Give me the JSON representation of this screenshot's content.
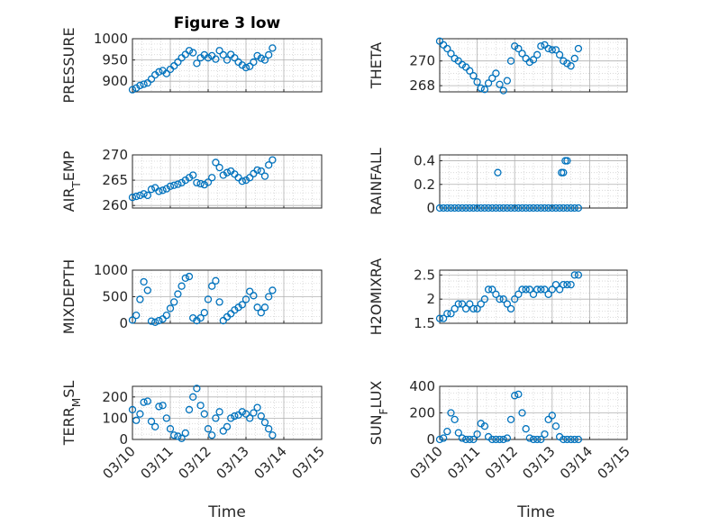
{
  "figure": {
    "title": "Figure 3 low",
    "xlabel": "Time"
  },
  "chart_data": [
    {
      "type": "scatter",
      "ylabel": "PRESSURE",
      "ylabel_parts": [
        "PRESSURE"
      ],
      "ylim": [
        875,
        1000
      ],
      "yticks": [
        900,
        950,
        1000
      ],
      "xticks": [
        "03/10",
        "03/11",
        "03/12",
        "03/13",
        "03/14",
        "03/15"
      ],
      "show_xtick_labels": false,
      "x": [
        0,
        0.1,
        0.2,
        0.3,
        0.4,
        0.5,
        0.6,
        0.7,
        0.8,
        0.9,
        1.0,
        1.1,
        1.2,
        1.3,
        1.4,
        1.5,
        1.6,
        1.7,
        1.8,
        1.9,
        2.0,
        2.1,
        2.2,
        2.3,
        2.4,
        2.5,
        2.6,
        2.7,
        2.8,
        2.9,
        3.0,
        3.1,
        3.2,
        3.3,
        3.4,
        3.5,
        3.6,
        3.7
      ],
      "y": [
        880,
        884,
        890,
        893,
        896,
        905,
        915,
        922,
        925,
        918,
        928,
        936,
        945,
        955,
        963,
        972,
        967,
        942,
        955,
        962,
        955,
        960,
        952,
        972,
        962,
        950,
        963,
        955,
        945,
        938,
        932,
        935,
        945,
        960,
        954,
        950,
        962,
        978
      ]
    },
    {
      "type": "scatter",
      "ylabel": "THETA",
      "ylabel_parts": [
        "THETA"
      ],
      "ylim": [
        267.5,
        271.8
      ],
      "yticks": [
        268,
        270
      ],
      "xticks": [
        "03/10",
        "03/11",
        "03/12",
        "03/13",
        "03/14",
        "03/15"
      ],
      "show_xtick_labels": false,
      "x": [
        0,
        0.1,
        0.2,
        0.3,
        0.4,
        0.5,
        0.6,
        0.7,
        0.8,
        0.9,
        1.0,
        1.1,
        1.2,
        1.3,
        1.4,
        1.5,
        1.6,
        1.7,
        1.8,
        1.9,
        2.0,
        2.1,
        2.2,
        2.3,
        2.4,
        2.5,
        2.6,
        2.7,
        2.8,
        2.9,
        3.0,
        3.1,
        3.2,
        3.3,
        3.4,
        3.5,
        3.6,
        3.7
      ],
      "y": [
        271.6,
        271.3,
        271.0,
        270.6,
        270.2,
        270.0,
        269.7,
        269.5,
        269.2,
        268.8,
        268.3,
        267.8,
        267.7,
        268.2,
        268.6,
        269.0,
        268.1,
        267.6,
        268.4,
        270.0,
        271.2,
        271.0,
        270.6,
        270.2,
        269.9,
        270.1,
        270.5,
        271.2,
        271.3,
        271.0,
        270.9,
        270.9,
        270.5,
        270.0,
        269.8,
        269.6,
        270.2,
        271.0
      ]
    },
    {
      "type": "scatter",
      "ylabel": "AIR_TEMP",
      "ylabel_parts": [
        "AIR",
        "T",
        "EMP"
      ],
      "ylim": [
        259.5,
        270
      ],
      "yticks": [
        260,
        265,
        270
      ],
      "xticks": [
        "03/10",
        "03/11",
        "03/12",
        "03/13",
        "03/14",
        "03/15"
      ],
      "show_xtick_labels": false,
      "x": [
        0,
        0.1,
        0.2,
        0.3,
        0.4,
        0.5,
        0.6,
        0.7,
        0.8,
        0.9,
        1.0,
        1.1,
        1.2,
        1.3,
        1.4,
        1.5,
        1.6,
        1.7,
        1.8,
        1.9,
        2.0,
        2.1,
        2.2,
        2.3,
        2.4,
        2.5,
        2.6,
        2.7,
        2.8,
        2.9,
        3.0,
        3.1,
        3.2,
        3.3,
        3.4,
        3.5,
        3.6,
        3.7
      ],
      "y": [
        261.6,
        261.8,
        262.0,
        262.3,
        262.0,
        263.2,
        263.5,
        262.8,
        263.0,
        263.3,
        263.8,
        264.0,
        264.2,
        264.5,
        265.0,
        265.5,
        266.0,
        264.5,
        264.3,
        264.1,
        264.6,
        265.5,
        268.5,
        267.5,
        266.0,
        266.5,
        266.8,
        266.2,
        265.5,
        264.8,
        265.0,
        265.5,
        266.3,
        267.0,
        266.8,
        265.8,
        268.0,
        269.0
      ]
    },
    {
      "type": "scatter",
      "ylabel": "RAINFALL",
      "ylabel_parts": [
        "RAINFALL"
      ],
      "ylim": [
        0,
        0.45
      ],
      "yticks": [
        0,
        0.2,
        0.4
      ],
      "xticks": [
        "03/10",
        "03/11",
        "03/12",
        "03/13",
        "03/14",
        "03/15"
      ],
      "show_xtick_labels": false,
      "x": [
        0,
        0.1,
        0.2,
        0.3,
        0.4,
        0.5,
        0.6,
        0.7,
        0.8,
        0.9,
        1.0,
        1.1,
        1.2,
        1.3,
        1.4,
        1.5,
        1.6,
        1.7,
        1.8,
        1.9,
        2.0,
        2.1,
        2.2,
        2.3,
        2.4,
        2.5,
        2.6,
        2.7,
        2.8,
        2.9,
        3.0,
        3.1,
        3.2,
        3.3,
        3.4,
        3.5,
        3.6,
        3.7,
        1.55,
        3.25,
        3.3,
        3.35,
        3.4
      ],
      "y": [
        0,
        0,
        0,
        0,
        0,
        0,
        0,
        0,
        0,
        0,
        0,
        0,
        0,
        0,
        0,
        0,
        0,
        0,
        0,
        0,
        0,
        0,
        0,
        0,
        0,
        0,
        0,
        0,
        0,
        0,
        0,
        0,
        0,
        0,
        0,
        0,
        0,
        0,
        0.3,
        0.3,
        0.3,
        0.4,
        0.4
      ]
    },
    {
      "type": "scatter",
      "ylabel": "MIXDEPTH",
      "ylabel_parts": [
        "MIXDEPTH"
      ],
      "ylim": [
        0,
        1000
      ],
      "yticks": [
        0,
        500,
        1000
      ],
      "xticks": [
        "03/10",
        "03/11",
        "03/12",
        "03/13",
        "03/14",
        "03/15"
      ],
      "show_xtick_labels": false,
      "x": [
        0,
        0.1,
        0.2,
        0.3,
        0.4,
        0.5,
        0.6,
        0.7,
        0.8,
        0.9,
        1.0,
        1.1,
        1.2,
        1.3,
        1.4,
        1.5,
        1.6,
        1.7,
        1.8,
        1.9,
        2.0,
        2.1,
        2.2,
        2.3,
        2.4,
        2.5,
        2.6,
        2.7,
        2.8,
        2.9,
        3.0,
        3.1,
        3.2,
        3.3,
        3.4,
        3.5,
        3.6,
        3.7
      ],
      "y": [
        60,
        150,
        450,
        780,
        620,
        40,
        20,
        50,
        80,
        150,
        280,
        400,
        550,
        700,
        850,
        880,
        100,
        50,
        100,
        200,
        450,
        700,
        800,
        400,
        50,
        120,
        180,
        250,
        300,
        350,
        450,
        600,
        520,
        300,
        200,
        300,
        500,
        620
      ]
    },
    {
      "type": "scatter",
      "ylabel": "H2OMIXRA",
      "ylabel_parts": [
        "H2OMIXRA"
      ],
      "ylim": [
        1.5,
        2.6
      ],
      "yticks": [
        1.5,
        2,
        2.5
      ],
      "xticks": [
        "03/10",
        "03/11",
        "03/12",
        "03/13",
        "03/14",
        "03/15"
      ],
      "show_xtick_labels": false,
      "x": [
        0,
        0.1,
        0.2,
        0.3,
        0.4,
        0.5,
        0.6,
        0.7,
        0.8,
        0.9,
        1.0,
        1.1,
        1.2,
        1.3,
        1.4,
        1.5,
        1.6,
        1.7,
        1.8,
        1.9,
        2.0,
        2.1,
        2.2,
        2.3,
        2.4,
        2.5,
        2.6,
        2.7,
        2.8,
        2.9,
        3.0,
        3.1,
        3.2,
        3.3,
        3.4,
        3.5,
        3.6,
        3.7
      ],
      "y": [
        1.6,
        1.6,
        1.7,
        1.7,
        1.8,
        1.9,
        1.9,
        1.8,
        1.9,
        1.8,
        1.8,
        1.9,
        2.0,
        2.2,
        2.2,
        2.1,
        2.0,
        2.0,
        1.9,
        1.8,
        2.0,
        2.1,
        2.2,
        2.2,
        2.2,
        2.1,
        2.2,
        2.2,
        2.2,
        2.1,
        2.2,
        2.3,
        2.2,
        2.3,
        2.3,
        2.3,
        2.5,
        2.5
      ]
    },
    {
      "type": "scatter",
      "ylabel": "TERR_MSL",
      "ylabel_parts": [
        "TERR",
        "M",
        "SL"
      ],
      "ylim": [
        0,
        250
      ],
      "yticks": [
        0,
        100,
        200
      ],
      "xticks": [
        "03/10",
        "03/11",
        "03/12",
        "03/13",
        "03/14",
        "03/15"
      ],
      "show_xtick_labels": true,
      "x": [
        0,
        0.1,
        0.2,
        0.3,
        0.4,
        0.5,
        0.6,
        0.7,
        0.8,
        0.9,
        1.0,
        1.1,
        1.2,
        1.3,
        1.4,
        1.5,
        1.6,
        1.7,
        1.8,
        1.9,
        2.0,
        2.1,
        2.2,
        2.3,
        2.4,
        2.5,
        2.6,
        2.7,
        2.8,
        2.9,
        3.0,
        3.1,
        3.2,
        3.3,
        3.4,
        3.5,
        3.6,
        3.7
      ],
      "y": [
        140,
        90,
        120,
        175,
        180,
        85,
        60,
        155,
        160,
        100,
        50,
        20,
        15,
        5,
        30,
        140,
        200,
        240,
        160,
        120,
        50,
        20,
        100,
        130,
        40,
        60,
        100,
        110,
        115,
        130,
        120,
        100,
        125,
        150,
        110,
        80,
        50,
        20
      ]
    },
    {
      "type": "scatter",
      "ylabel": "SUN_FLUX",
      "ylabel_parts": [
        "SUN",
        "F",
        "LUX"
      ],
      "ylim": [
        0,
        400
      ],
      "yticks": [
        0,
        200,
        400
      ],
      "xticks": [
        "03/10",
        "03/11",
        "03/12",
        "03/13",
        "03/14",
        "03/15"
      ],
      "show_xtick_labels": true,
      "x": [
        0,
        0.1,
        0.2,
        0.3,
        0.4,
        0.5,
        0.6,
        0.7,
        0.8,
        0.9,
        1.0,
        1.1,
        1.2,
        1.3,
        1.4,
        1.5,
        1.6,
        1.7,
        1.8,
        1.9,
        2.0,
        2.1,
        2.2,
        2.3,
        2.4,
        2.5,
        2.6,
        2.7,
        2.8,
        2.9,
        3.0,
        3.1,
        3.2,
        3.3,
        3.4,
        3.5,
        3.6,
        3.7
      ],
      "y": [
        0,
        10,
        60,
        200,
        150,
        50,
        10,
        0,
        0,
        0,
        40,
        120,
        100,
        20,
        0,
        0,
        0,
        0,
        10,
        150,
        330,
        340,
        200,
        80,
        10,
        0,
        0,
        0,
        40,
        150,
        180,
        100,
        20,
        0,
        0,
        0,
        0,
        0
      ]
    }
  ]
}
